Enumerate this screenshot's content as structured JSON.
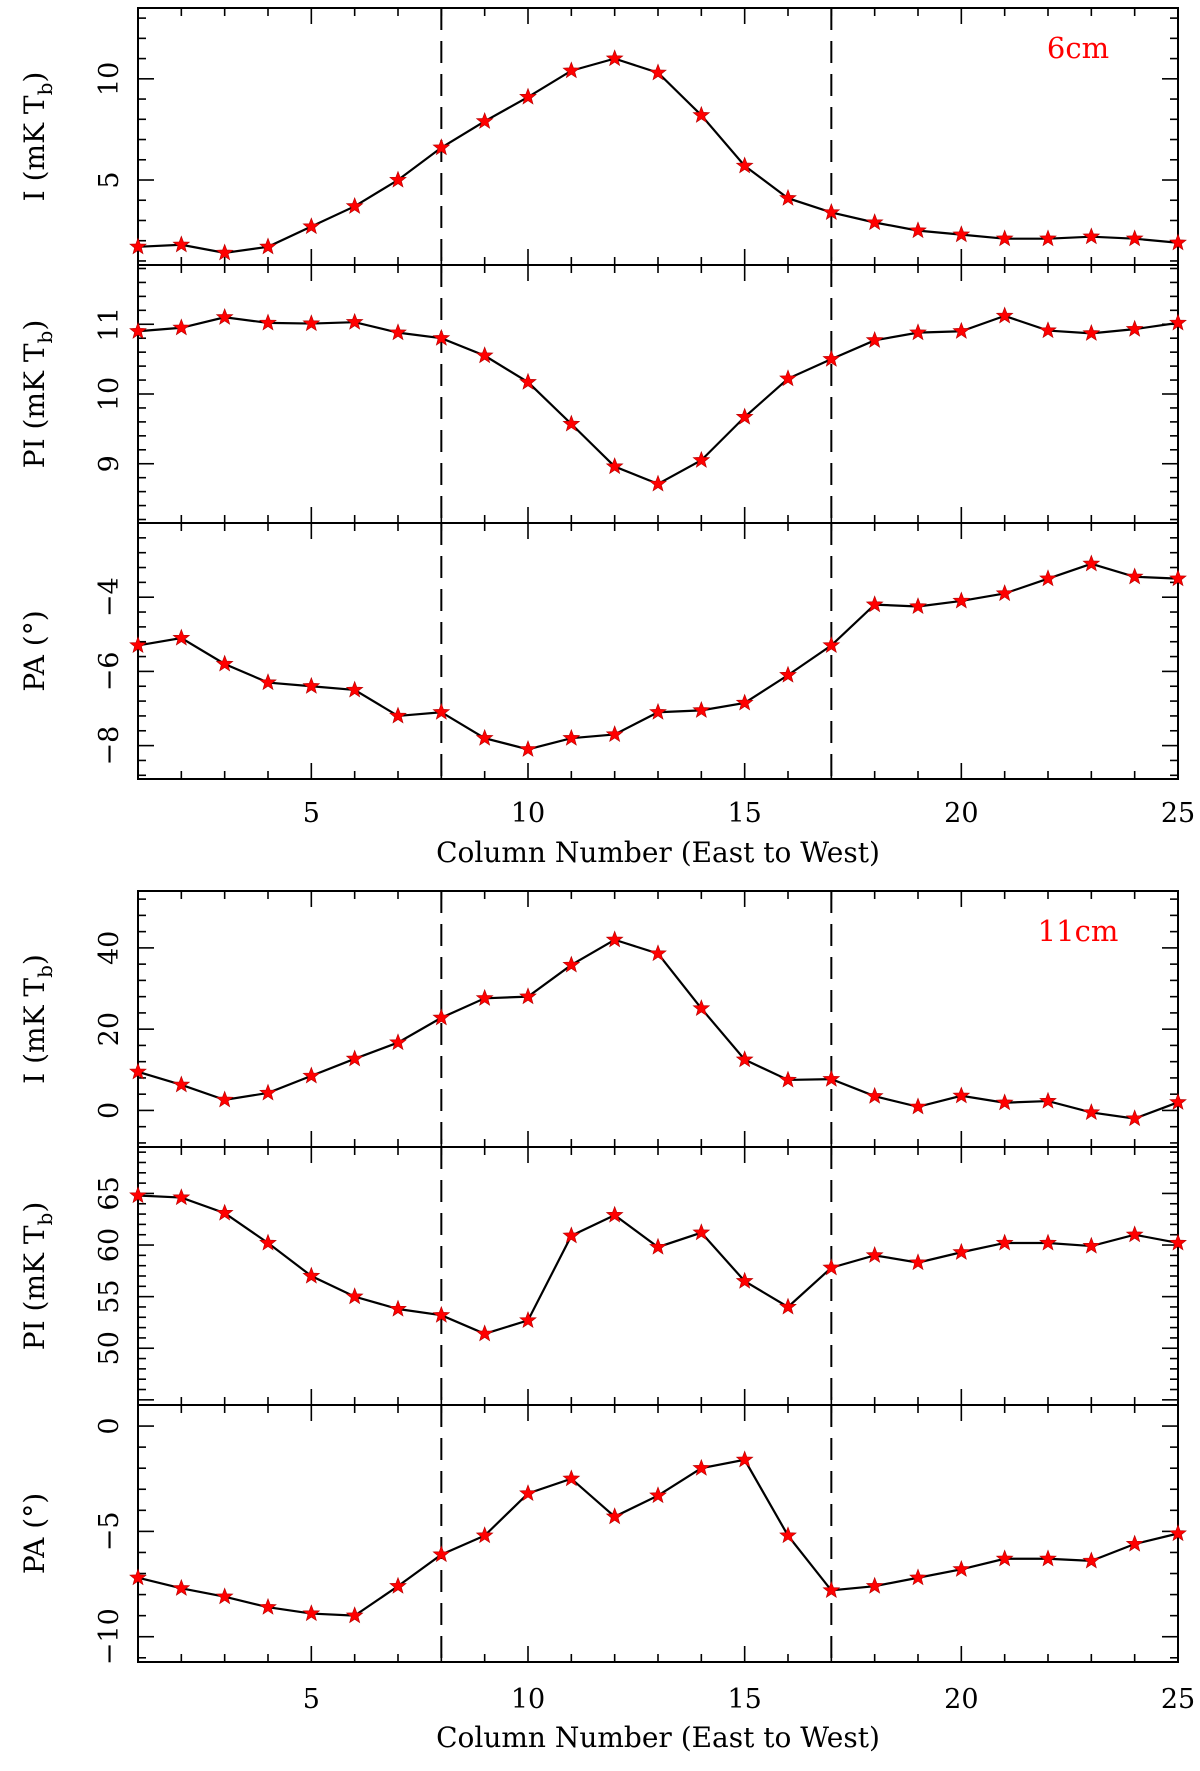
{
  "chart_data": [
    {
      "type": "line",
      "band_label": "6cm",
      "xlabel": "Column Number (East to West)",
      "x_ticks": [
        "5",
        "10",
        "15",
        "20",
        "25"
      ],
      "xlim": [
        1,
        25
      ],
      "marker_color": "#ff0000",
      "line_color": "#000000",
      "vlines": [
        8,
        17
      ],
      "panels": [
        {
          "id": "I",
          "ylabel": "I (mK T",
          "ylabel_sub": "b",
          "ylabel_end": ")",
          "ylim": [
            0.8,
            13.5
          ],
          "y_ticks": [
            "5",
            "10"
          ],
          "x": [
            1,
            2,
            3,
            4,
            5,
            6,
            7,
            8,
            9,
            10,
            11,
            12,
            13,
            14,
            15,
            16,
            17,
            18,
            19,
            20,
            21,
            22,
            23,
            24,
            25
          ],
          "values": [
            1.7,
            1.8,
            1.4,
            1.7,
            2.7,
            3.7,
            5.0,
            6.6,
            7.9,
            9.1,
            10.4,
            11.0,
            10.3,
            8.2,
            5.7,
            4.1,
            3.4,
            2.9,
            2.5,
            2.3,
            2.1,
            2.1,
            2.2,
            2.1,
            1.9
          ]
        },
        {
          "id": "PI",
          "ylabel": "PI (mK T",
          "ylabel_sub": "b",
          "ylabel_end": ")",
          "ylim": [
            8.15,
            11.85
          ],
          "y_ticks": [
            "9",
            "10",
            "11"
          ],
          "x": [
            1,
            2,
            3,
            4,
            5,
            6,
            7,
            8,
            9,
            10,
            11,
            12,
            13,
            14,
            15,
            16,
            17,
            18,
            19,
            20,
            21,
            22,
            23,
            24,
            25
          ],
          "values": [
            10.9,
            10.95,
            11.1,
            11.02,
            11.01,
            11.03,
            10.88,
            10.8,
            10.55,
            10.17,
            9.57,
            8.96,
            8.71,
            9.05,
            9.67,
            10.22,
            10.5,
            10.77,
            10.88,
            10.9,
            11.12,
            10.91,
            10.87,
            10.93,
            11.02
          ]
        },
        {
          "id": "PA",
          "ylabel": "PA (°)",
          "ylim": [
            -8.9,
            -2.0
          ],
          "y_ticks": [
            "−8",
            "−6",
            "−4"
          ],
          "x": [
            1,
            2,
            3,
            4,
            5,
            6,
            7,
            8,
            9,
            10,
            11,
            12,
            13,
            14,
            15,
            16,
            17,
            18,
            19,
            20,
            21,
            22,
            23,
            24,
            25
          ],
          "values": [
            -5.3,
            -5.1,
            -5.8,
            -6.3,
            -6.4,
            -6.5,
            -7.2,
            -7.1,
            -7.8,
            -8.1,
            -7.8,
            -7.7,
            -7.1,
            -7.05,
            -6.85,
            -6.1,
            -5.3,
            -4.2,
            -4.25,
            -4.1,
            -3.9,
            -3.5,
            -3.1,
            -3.45,
            -3.5
          ]
        }
      ]
    },
    {
      "type": "line",
      "band_label": "11cm",
      "xlabel": "Column Number (East to West)",
      "x_ticks": [
        "5",
        "10",
        "15",
        "20",
        "25"
      ],
      "xlim": [
        1,
        25
      ],
      "marker_color": "#ff0000",
      "line_color": "#000000",
      "vlines": [
        8,
        17
      ],
      "panels": [
        {
          "id": "I",
          "ylabel": "I (mK T",
          "ylabel_sub": "b",
          "ylabel_end": ")",
          "ylim": [
            -9,
            54
          ],
          "y_ticks": [
            "0",
            "20",
            "40"
          ],
          "x": [
            1,
            2,
            3,
            4,
            5,
            6,
            7,
            8,
            9,
            10,
            11,
            12,
            13,
            14,
            15,
            16,
            17,
            18,
            19,
            20,
            21,
            22,
            23,
            24,
            25
          ],
          "values": [
            9.5,
            6.3,
            2.6,
            4.3,
            8.5,
            12.7,
            16.7,
            22.8,
            27.6,
            28.0,
            35.8,
            42.0,
            38.6,
            25.1,
            12.5,
            7.5,
            7.7,
            3.5,
            0.9,
            3.6,
            1.9,
            2.3,
            -0.5,
            -2.0,
            2.0
          ]
        },
        {
          "id": "PI",
          "ylabel": "PI (mK T",
          "ylabel_sub": "b",
          "ylabel_end": ")",
          "ylim": [
            44.5,
            69.5
          ],
          "y_ticks": [
            "50",
            "55",
            "60",
            "65"
          ],
          "x": [
            1,
            2,
            3,
            4,
            5,
            6,
            7,
            8,
            9,
            10,
            11,
            12,
            13,
            14,
            15,
            16,
            17,
            18,
            19,
            20,
            21,
            22,
            23,
            24,
            25
          ],
          "values": [
            64.8,
            64.6,
            63.1,
            60.2,
            57.0,
            55.0,
            53.8,
            53.2,
            51.4,
            52.7,
            60.9,
            62.9,
            59.8,
            61.2,
            56.5,
            54.0,
            57.8,
            59.0,
            58.3,
            59.3,
            60.2,
            60.2,
            59.9,
            61.0,
            60.2
          ]
        },
        {
          "id": "PA",
          "ylabel": "PA (°)",
          "ylim": [
            -11.2,
            1.0
          ],
          "y_ticks": [
            "−10",
            "−5",
            "0"
          ],
          "x": [
            1,
            2,
            3,
            4,
            5,
            6,
            7,
            8,
            9,
            10,
            11,
            12,
            13,
            14,
            15,
            16,
            17,
            18,
            19,
            20,
            21,
            22,
            23,
            24,
            25
          ],
          "values": [
            -7.2,
            -7.7,
            -8.1,
            -8.6,
            -8.9,
            -9.0,
            -7.6,
            -6.1,
            -5.2,
            -3.2,
            -2.5,
            -4.3,
            -3.3,
            -2.0,
            -1.6,
            -5.2,
            -7.8,
            -7.6,
            -7.2,
            -6.8,
            -6.3,
            -6.3,
            -6.4,
            -5.6,
            -5.1
          ]
        }
      ]
    }
  ]
}
